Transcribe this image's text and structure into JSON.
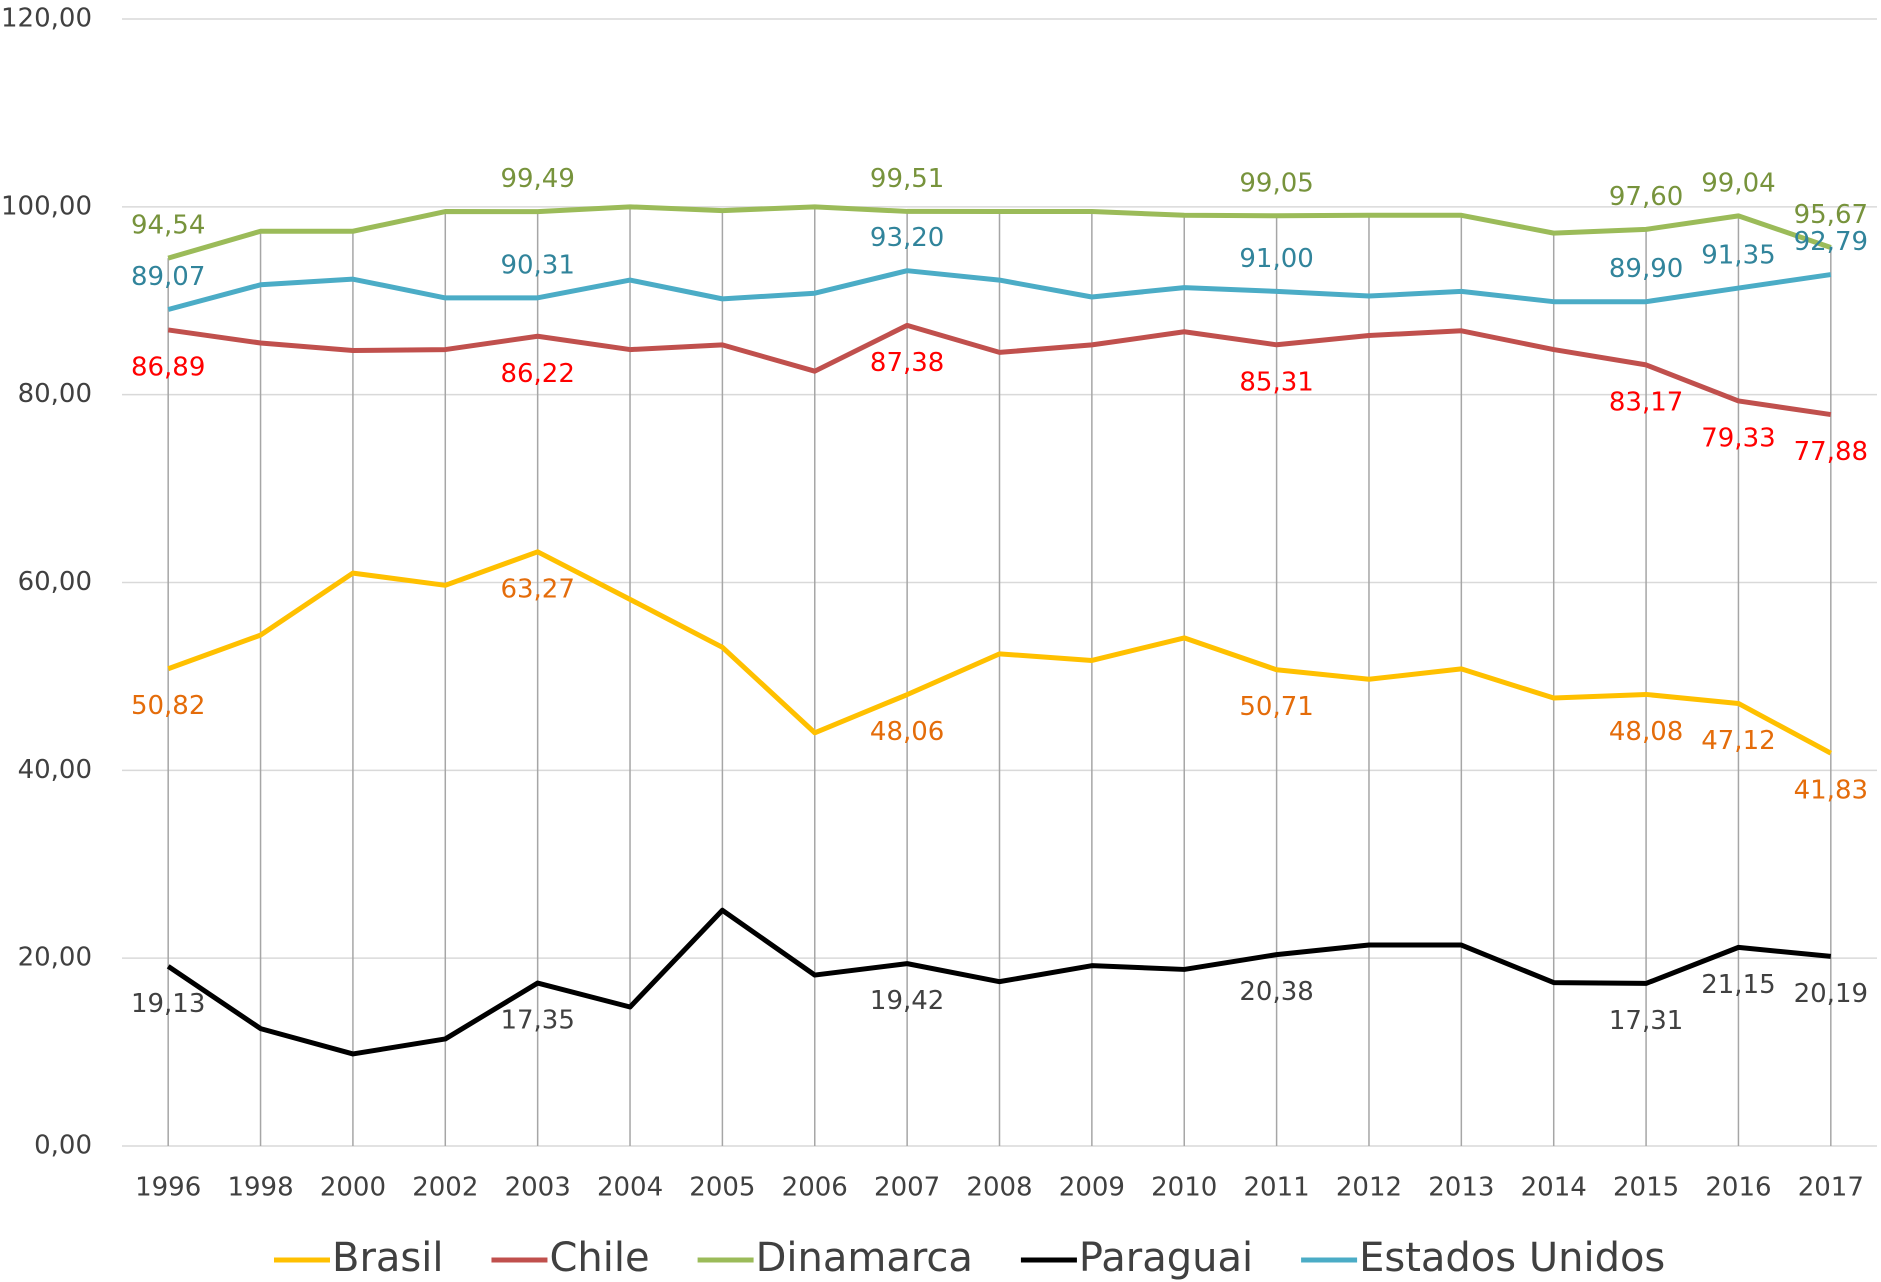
{
  "chart_data": {
    "type": "line",
    "categories": [
      "1996",
      "1998",
      "2000",
      "2002",
      "2003",
      "2004",
      "2005",
      "2006",
      "2007",
      "2008",
      "2009",
      "2010",
      "2011",
      "2012",
      "2013",
      "2014",
      "2015",
      "2016",
      "2017"
    ],
    "ylim": [
      0,
      120
    ],
    "yticks": [
      {
        "value": 0,
        "label": "0,00"
      },
      {
        "value": 20,
        "label": "20,00"
      },
      {
        "value": 40,
        "label": "40,00"
      },
      {
        "value": 60,
        "label": "60,00"
      },
      {
        "value": 80,
        "label": "80,00"
      },
      {
        "value": 100,
        "label": "100,00"
      },
      {
        "value": 120,
        "label": "120,00"
      }
    ],
    "grid": true,
    "legend": "bottom",
    "series": [
      {
        "name": "Brasil",
        "color": "#ffc000",
        "label_color": "#e46c0a",
        "label_position": "below",
        "values": [
          50.82,
          54.4,
          61.0,
          59.7,
          63.27,
          58.2,
          53.1,
          44.0,
          48.06,
          52.4,
          51.7,
          54.1,
          50.71,
          49.7,
          50.8,
          47.7,
          48.08,
          47.12,
          41.83
        ],
        "value_labels": [
          "50,82",
          null,
          null,
          null,
          "63,27",
          null,
          null,
          null,
          "48,06",
          null,
          null,
          null,
          "50,71",
          null,
          null,
          null,
          "48,08",
          "47,12",
          "41,83"
        ]
      },
      {
        "name": "Chile",
        "color": "#c0504d",
        "label_color": "#ff0000",
        "label_position": "below",
        "values": [
          86.89,
          85.5,
          84.7,
          84.8,
          86.22,
          84.8,
          85.3,
          82.5,
          87.38,
          84.5,
          85.3,
          86.7,
          85.31,
          86.3,
          86.8,
          84.8,
          83.17,
          79.33,
          77.88
        ],
        "value_labels": [
          "86,89",
          null,
          null,
          null,
          "86,22",
          null,
          null,
          null,
          "87,38",
          null,
          null,
          null,
          "85,31",
          null,
          null,
          null,
          "83,17",
          "79,33",
          "77,88"
        ]
      },
      {
        "name": "Dinamarca",
        "color": "#9bbb59",
        "label_color": "#77933c",
        "label_position": "above",
        "values": [
          94.54,
          97.4,
          97.4,
          99.5,
          99.49,
          100.0,
          99.6,
          100.0,
          99.51,
          99.5,
          99.5,
          99.1,
          99.05,
          99.1,
          99.1,
          97.2,
          97.6,
          99.04,
          95.67
        ],
        "value_labels": [
          "94,54",
          null,
          null,
          null,
          "99,49",
          null,
          null,
          null,
          "99,51",
          null,
          null,
          null,
          "99,05",
          null,
          null,
          null,
          "97,60",
          "99,04",
          "95,67"
        ]
      },
      {
        "name": "Paraguai",
        "color": "#000000",
        "label_color": "#404040",
        "label_position": "below",
        "values": [
          19.13,
          12.5,
          9.8,
          11.4,
          17.35,
          14.8,
          25.1,
          18.2,
          19.42,
          17.5,
          19.2,
          18.8,
          20.38,
          21.4,
          21.4,
          17.4,
          17.31,
          21.15,
          20.19
        ],
        "value_labels": [
          "19,13",
          null,
          null,
          null,
          "17,35",
          null,
          null,
          null,
          "19,42",
          null,
          null,
          null,
          "20,38",
          null,
          null,
          null,
          "17,31",
          "21,15",
          "20,19"
        ]
      },
      {
        "name": "Estados Unidos",
        "color": "#4bacc6",
        "label_color": "#31849b",
        "label_position": "above",
        "values": [
          89.07,
          91.7,
          92.3,
          90.3,
          90.31,
          92.2,
          90.2,
          90.8,
          93.2,
          92.2,
          90.4,
          91.4,
          91.0,
          90.5,
          91.0,
          89.9,
          89.9,
          91.35,
          92.79
        ],
        "value_labels": [
          "89,07",
          null,
          null,
          null,
          "90,31",
          null,
          null,
          null,
          "93,20",
          null,
          null,
          null,
          "91,00",
          null,
          null,
          null,
          "89,90",
          "91,35",
          "92,79"
        ]
      }
    ]
  }
}
